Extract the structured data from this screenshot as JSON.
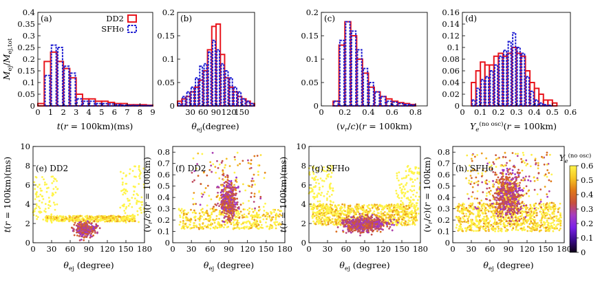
{
  "colors": {
    "dd2": "#e8141c",
    "sfho": "#1e1ed2",
    "colormap": [
      "#0d0015",
      "#3a0a8c",
      "#7a1fe8",
      "#a63cc0",
      "#c8503c",
      "#e07818",
      "#f6c624",
      "#fff44a"
    ]
  },
  "legend": {
    "dd2": "DD2",
    "sfho": "SFHo",
    "placement": "top-right of panel (a)"
  },
  "shared_labels": {
    "top_ylabel": "M_ej / M_ej,tot",
    "theta_xlabel": "θ_ej (degree)",
    "colorbar_title": "Y_e^(no osc)"
  },
  "chart_data": [
    {
      "id": "a",
      "type": "bar",
      "panel_label": "(a)",
      "xlabel": "t(r = 100km)(ms)",
      "ylabel": "M_ej/M_ej,tot",
      "xlim": [
        0,
        9
      ],
      "ylim": [
        0,
        0.4
      ],
      "xticks": [
        "0",
        "1",
        "2",
        "3",
        "4",
        "5",
        "6",
        "7",
        "8",
        "9"
      ],
      "yticks": [
        "0",
        "0.05",
        "0.1",
        "0.15",
        "0.2",
        "0.25",
        "0.3",
        "0.35",
        "0.4"
      ],
      "bin_edges": [
        0,
        0.5,
        1,
        1.5,
        2,
        2.5,
        3,
        3.5,
        4,
        4.5,
        5,
        5.5,
        6,
        6.5,
        7,
        7.5,
        8,
        8.5,
        9
      ],
      "series": [
        {
          "name": "DD2",
          "values": [
            0.01,
            0.19,
            0.23,
            0.19,
            0.16,
            0.12,
            0.05,
            0.03,
            0.03,
            0.02,
            0.02,
            0.015,
            0.01,
            0.01,
            0.005,
            0.005,
            0.005,
            0.003
          ]
        },
        {
          "name": "SFHo",
          "values": [
            0,
            0.13,
            0.26,
            0.25,
            0.17,
            0.14,
            0.03,
            0.02,
            0.02,
            0.01,
            0.01,
            0.008,
            0.005,
            0.003,
            0.002,
            0.002,
            0.001,
            0.001
          ]
        }
      ]
    },
    {
      "id": "b",
      "type": "bar",
      "panel_label": "(b)",
      "xlabel": "θ_ej(degree)",
      "xlim": [
        0,
        180
      ],
      "ylim": [
        0,
        0.2
      ],
      "xticks": [
        "30",
        "60",
        "90",
        "120",
        "150"
      ],
      "yticks": [
        "0",
        "0.05",
        "0.1",
        "0.15",
        "0.2"
      ],
      "bin_edges": [
        0,
        10,
        20,
        30,
        40,
        50,
        60,
        70,
        80,
        90,
        100,
        110,
        120,
        130,
        140,
        150,
        160,
        170,
        180
      ],
      "series": [
        {
          "name": "DD2",
          "values": [
            0.01,
            0.015,
            0.02,
            0.03,
            0.04,
            0.055,
            0.075,
            0.12,
            0.17,
            0.175,
            0.11,
            0.06,
            0.04,
            0.03,
            0.02,
            0.015,
            0.01,
            0.005
          ]
        },
        {
          "name": "SFHo",
          "values": [
            0.005,
            0.02,
            0.03,
            0.04,
            0.06,
            0.085,
            0.09,
            0.115,
            0.14,
            0.12,
            0.09,
            0.075,
            0.06,
            0.04,
            0.03,
            0.015,
            0.01,
            0.005
          ]
        }
      ]
    },
    {
      "id": "c",
      "type": "bar",
      "panel_label": "(c)",
      "xlabel": "(v_r/c)(r = 100km)",
      "xlim": [
        0,
        0.9
      ],
      "ylim": [
        0,
        0.2
      ],
      "xticks": [
        "0",
        "0.2",
        "0.4",
        "0.6",
        "0.8"
      ],
      "yticks": [
        "0",
        "0.05",
        "0.1",
        "0.15",
        "0.2"
      ],
      "bin_edges": [
        0.1,
        0.15,
        0.2,
        0.25,
        0.3,
        0.35,
        0.4,
        0.45,
        0.5,
        0.55,
        0.6,
        0.65,
        0.7,
        0.75,
        0.8
      ],
      "series": [
        {
          "name": "DD2",
          "values": [
            0.01,
            0.13,
            0.18,
            0.15,
            0.1,
            0.07,
            0.04,
            0.03,
            0.02,
            0.015,
            0.01,
            0.007,
            0.005,
            0.003
          ]
        },
        {
          "name": "SFHo",
          "values": [
            0.01,
            0.14,
            0.18,
            0.16,
            0.12,
            0.08,
            0.05,
            0.03,
            0.02,
            0.01,
            0.008,
            0.005,
            0.003,
            0.002
          ]
        }
      ]
    },
    {
      "id": "d",
      "type": "bar",
      "panel_label": "(d)",
      "xlabel": "Y_e^(no osc)(r = 100km)",
      "xlim": [
        0,
        0.6
      ],
      "ylim": [
        0,
        0.16
      ],
      "xticks": [
        "0",
        "0.1",
        "0.2",
        "0.3",
        "0.4",
        "0.5",
        "0.6"
      ],
      "yticks": [
        "0",
        "0.02",
        "0.04",
        "0.06",
        "0.08",
        "0.1",
        "0.12",
        "0.14",
        "0.16"
      ],
      "bin_edges": [
        0.05,
        0.075,
        0.1,
        0.125,
        0.15,
        0.175,
        0.2,
        0.225,
        0.25,
        0.275,
        0.3,
        0.325,
        0.35,
        0.375,
        0.4,
        0.425,
        0.45,
        0.475,
        0.5,
        0.525
      ],
      "series": [
        {
          "name": "DD2",
          "values": [
            0.04,
            0.06,
            0.075,
            0.07,
            0.07,
            0.085,
            0.09,
            0.085,
            0.09,
            0.1,
            0.09,
            0.085,
            0.06,
            0.04,
            0.03,
            0.02,
            0.01,
            0.01,
            0.005
          ]
        },
        {
          "name": "SFHo",
          "values": [
            0.01,
            0.03,
            0.045,
            0.05,
            0.06,
            0.07,
            0.085,
            0.095,
            0.11,
            0.125,
            0.1,
            0.09,
            0.05,
            0.025,
            0.01,
            0.005,
            0.002,
            0.001,
            0
          ]
        }
      ]
    },
    {
      "id": "e",
      "type": "scatter",
      "panel_label": "(e) DD2",
      "xlabel": "θ_ej (degree)",
      "ylabel": "t(r = 100km)(ms)",
      "xlim": [
        0,
        180
      ],
      "ylim": [
        0,
        10
      ],
      "xticks": [
        "0",
        "30",
        "60",
        "90",
        "120",
        "150",
        "180"
      ],
      "yticks": [
        "0",
        "2",
        "4",
        "6",
        "8",
        "10"
      ],
      "color_by": "Y_e^(no osc)",
      "clusters": [
        {
          "x": [
            20,
            165
          ],
          "y": [
            2.2,
            2.8
          ],
          "color": "orange-red",
          "weight": 0.45
        },
        {
          "x": [
            60,
            110
          ],
          "y": [
            0.3,
            2.5
          ],
          "color": "violet",
          "weight": 0.35
        },
        {
          "x": [
            0,
            40
          ],
          "y": [
            2,
            7
          ],
          "color": "orange",
          "weight": 0.1
        },
        {
          "x": [
            140,
            180
          ],
          "y": [
            2,
            8
          ],
          "color": "orange",
          "weight": 0.1
        }
      ]
    },
    {
      "id": "f",
      "type": "scatter",
      "panel_label": "(f) DD2",
      "xlabel": "θ_ej (degree)",
      "ylabel": "(v_r/c)(r = 100km)",
      "xlim": [
        0,
        180
      ],
      "ylim": [
        0,
        0.85
      ],
      "xticks": [
        "0",
        "30",
        "60",
        "90",
        "120",
        "150",
        "180"
      ],
      "yticks": [
        "0",
        "0.1",
        "0.2",
        "0.3",
        "0.4",
        "0.5",
        "0.6",
        "0.7",
        "0.8"
      ],
      "color_by": "Y_e^(no osc)",
      "clusters": [
        {
          "x": [
            10,
            175
          ],
          "y": [
            0.12,
            0.3
          ],
          "color": "orange-red",
          "weight": 0.45
        },
        {
          "x": [
            70,
            110
          ],
          "y": [
            0.15,
            0.6
          ],
          "color": "violet",
          "weight": 0.4
        },
        {
          "x": [
            30,
            150
          ],
          "y": [
            0.3,
            0.8
          ],
          "color": "mixed",
          "weight": 0.15
        }
      ]
    },
    {
      "id": "g",
      "type": "scatter",
      "panel_label": "(g) SFHo",
      "xlabel": "θ_ej (degree)",
      "ylabel": "t(r = 100km)(ms)",
      "xlim": [
        0,
        180
      ],
      "ylim": [
        0,
        10
      ],
      "xticks": [
        "0",
        "30",
        "60",
        "90",
        "120",
        "150",
        "180"
      ],
      "yticks": [
        "0",
        "2",
        "4",
        "6",
        "8",
        "10"
      ],
      "color_by": "Y_e^(no osc)",
      "clusters": [
        {
          "x": [
            5,
            175
          ],
          "y": [
            1.8,
            4
          ],
          "color": "orange-red",
          "weight": 0.5
        },
        {
          "x": [
            40,
            140
          ],
          "y": [
            0.8,
            3
          ],
          "color": "violet",
          "weight": 0.35
        },
        {
          "x": [
            0,
            40
          ],
          "y": [
            3,
            8
          ],
          "color": "orange",
          "weight": 0.075
        },
        {
          "x": [
            140,
            180
          ],
          "y": [
            3,
            8
          ],
          "color": "orange",
          "weight": 0.075
        }
      ]
    },
    {
      "id": "h",
      "type": "scatter",
      "panel_label": "(h) SFHo",
      "xlabel": "θ_ej (degree)",
      "ylabel": "(v_r/c)(r = 100km)",
      "xlim": [
        0,
        180
      ],
      "ylim": [
        0,
        0.85
      ],
      "xticks": [
        "0",
        "30",
        "60",
        "90",
        "120",
        "150",
        "180"
      ],
      "yticks": [
        "0",
        "0.1",
        "0.2",
        "0.3",
        "0.4",
        "0.5",
        "0.6",
        "0.7",
        "0.8"
      ],
      "color_by": "Y_e^(no osc)",
      "clusters": [
        {
          "x": [
            5,
            175
          ],
          "y": [
            0.1,
            0.35
          ],
          "color": "orange-red",
          "weight": 0.5
        },
        {
          "x": [
            60,
            120
          ],
          "y": [
            0.15,
            0.7
          ],
          "color": "violet",
          "weight": 0.35
        },
        {
          "x": [
            20,
            160
          ],
          "y": [
            0.3,
            0.8
          ],
          "color": "mixed",
          "weight": 0.15
        }
      ]
    },
    {
      "id": "colorbar",
      "type": "heatmap",
      "title": "Y_e^(no osc)",
      "range": [
        0,
        0.6
      ],
      "ticks": [
        "0",
        "0.1",
        "0.2",
        "0.3",
        "0.4",
        "0.5",
        "0.6"
      ]
    }
  ]
}
